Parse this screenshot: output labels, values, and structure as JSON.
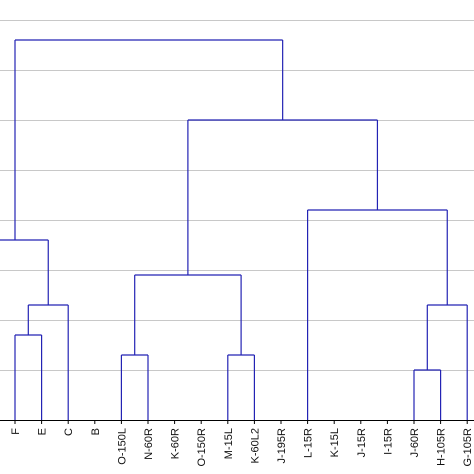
{
  "chart_data": {
    "type": "dendrogram",
    "title": "",
    "xlabel": "",
    "ylabel": "",
    "leaves": [
      "F",
      "E",
      "C",
      "B",
      "O-150L",
      "N-60R",
      "K-60R",
      "O-150R",
      "M-15L",
      "K-60L2",
      "J-195R",
      "L-15R",
      "K-15L",
      "J-15R",
      "I-15R",
      "J-60R",
      "H-105R",
      "G-105R"
    ],
    "merge_heights": {
      "F+E": 1.7,
      "F+E+C": 2.3,
      "O-150L+N-60R": 1.3,
      "M-15L+K-60L2": 1.3,
      "O-150L..K-60L2": 2.9,
      "J-60R+H-105R": 1.0,
      "J-60R+H-105R+G-105R": 2.3,
      "L-15R..G-105R": 4.2,
      "O-150L..G-105R": 6.0,
      "root": 7.6
    },
    "left_cluster_height": 3.6,
    "ylim": [
      0,
      8.0
    ],
    "grid": true,
    "colors": {
      "line": "#2323b4",
      "grid": "#c8c8c8",
      "axis": "#000000"
    }
  }
}
